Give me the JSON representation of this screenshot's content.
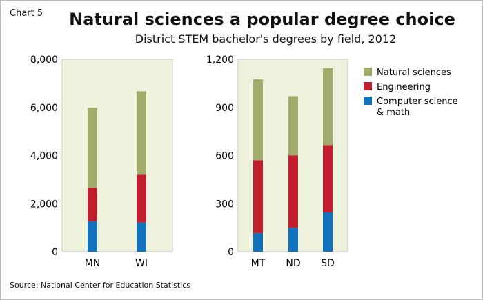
{
  "chart_label": "Chart 5",
  "title": "Natural sciences a popular degree choice",
  "subtitle": "District STEM bachelor's degrees by field, 2012",
  "source": "Source: National Center for Education Statistics",
  "colors": {
    "natural_sciences": "#a3ab6c",
    "engineering": "#c11f2f",
    "computer_science_math": "#1172bb",
    "plot_bg": "#eff2dc"
  },
  "legend": {
    "placement": "right",
    "entries": [
      "Natural sciences",
      "Engineering",
      "Computer science",
      "& math"
    ]
  },
  "chart_data": [
    {
      "type": "bar",
      "stacked": true,
      "categories": [
        "MN",
        "WI"
      ],
      "ylim": [
        0,
        8000
      ],
      "yticks": [
        "0",
        "2,000",
        "4,000",
        "6,000",
        "8,000"
      ],
      "ytick_values": [
        0,
        2000,
        4000,
        6000,
        8000
      ],
      "series": [
        {
          "name": "Computer science & math",
          "values": [
            1270,
            1210
          ]
        },
        {
          "name": "Engineering",
          "values": [
            1400,
            1990
          ]
        },
        {
          "name": "Natural sciences",
          "values": [
            3320,
            3470
          ]
        }
      ]
    },
    {
      "type": "bar",
      "stacked": true,
      "categories": [
        "MT",
        "ND",
        "SD"
      ],
      "ylim": [
        0,
        1200
      ],
      "yticks": [
        "0",
        "300",
        "600",
        "900",
        "1,200"
      ],
      "ytick_values": [
        0,
        300,
        600,
        900,
        1200
      ],
      "series": [
        {
          "name": "Computer science & math",
          "values": [
            115,
            150,
            245
          ]
        },
        {
          "name": "Engineering",
          "values": [
            455,
            450,
            420
          ]
        },
        {
          "name": "Natural sciences",
          "values": [
            505,
            370,
            480
          ]
        }
      ]
    }
  ]
}
